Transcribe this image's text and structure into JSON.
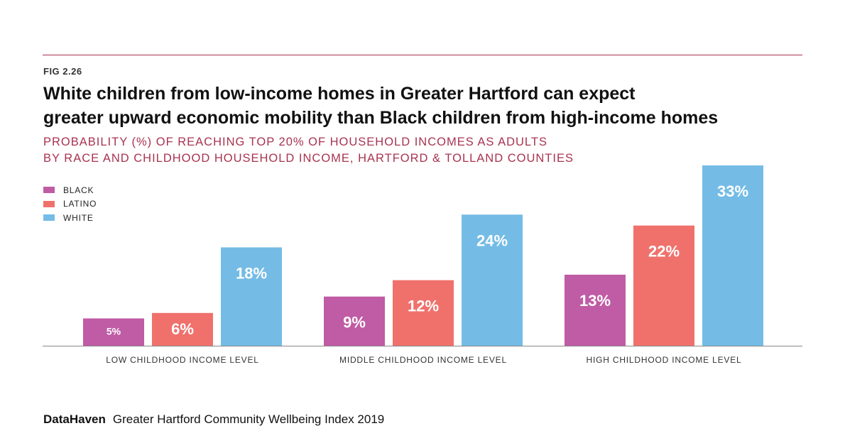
{
  "figure": {
    "fig_label": "FIG 2.26",
    "title_lines": [
      "White children from low-income homes in Greater Hartford can expect",
      "greater upward economic mobility than Black children from high-income homes"
    ],
    "subtitle_lines": [
      "PROBABILITY (%) OF REACHING TOP 20% OF HOUSEHOLD INCOMES AS ADULTS",
      "BY RACE AND CHILDHOOD HOUSEHOLD INCOME, HARTFORD & TOLLAND COUNTIES"
    ]
  },
  "legend": [
    {
      "label": "BLACK",
      "color": "#c05ba5"
    },
    {
      "label": "LATINO",
      "color": "#f0716c"
    },
    {
      "label": "WHITE",
      "color": "#74bce6"
    }
  ],
  "chart_data": {
    "type": "bar",
    "title": "White children from low-income homes in Greater Hartford can expect greater upward economic mobility than Black children from high-income homes",
    "subtitle": "PROBABILITY (%) OF REACHING TOP 20% OF HOUSEHOLD INCOMES AS ADULTS BY RACE AND CHILDHOOD HOUSEHOLD INCOME, HARTFORD & TOLLAND COUNTIES",
    "categories": [
      "LOW CHILDHOOD INCOME LEVEL",
      "MIDDLE CHILDHOOD INCOME LEVEL",
      "HIGH CHILDHOOD INCOME LEVEL"
    ],
    "series": [
      {
        "name": "BLACK",
        "color": "#c05ba5",
        "values": [
          5,
          9,
          13
        ],
        "labels": [
          "5%",
          "9%",
          "13%"
        ]
      },
      {
        "name": "LATINO",
        "color": "#f0716c",
        "values": [
          6,
          12,
          22
        ],
        "labels": [
          "6%",
          "12%",
          "22%"
        ]
      },
      {
        "name": "WHITE",
        "color": "#74bce6",
        "values": [
          18,
          24,
          33
        ],
        "labels": [
          "18%",
          "24%",
          "33%"
        ]
      }
    ],
    "ylim": [
      0,
      33
    ],
    "grid": false,
    "legend_position": "top-left"
  },
  "footer": {
    "brand": "DataHaven",
    "publication": "Greater Hartford Community Wellbeing Index 2019"
  }
}
